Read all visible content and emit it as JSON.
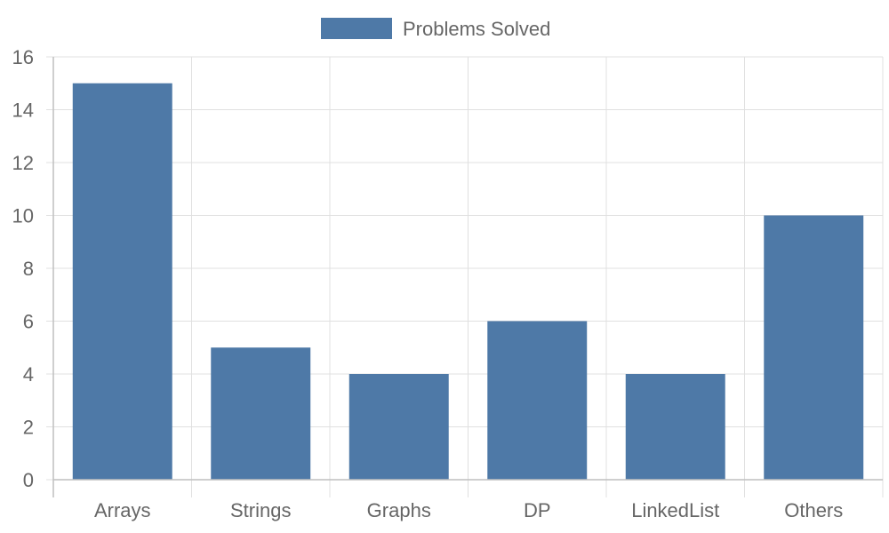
{
  "chart_data": {
    "type": "bar",
    "categories": [
      "Arrays",
      "Strings",
      "Graphs",
      "DP",
      "LinkedList",
      "Others"
    ],
    "series": [
      {
        "name": "Problems Solved",
        "values": [
          15,
          5,
          4,
          6,
          4,
          10
        ],
        "color": "#4e79a7"
      }
    ],
    "ylim": [
      0,
      16
    ],
    "yticks": [
      0,
      2,
      4,
      6,
      8,
      10,
      12,
      14,
      16
    ],
    "legend": {
      "position": "top-center"
    },
    "grid": true,
    "colors": {
      "grid": "#e0e0e0",
      "axis": "#bfbfbf",
      "text": "#666666"
    }
  }
}
